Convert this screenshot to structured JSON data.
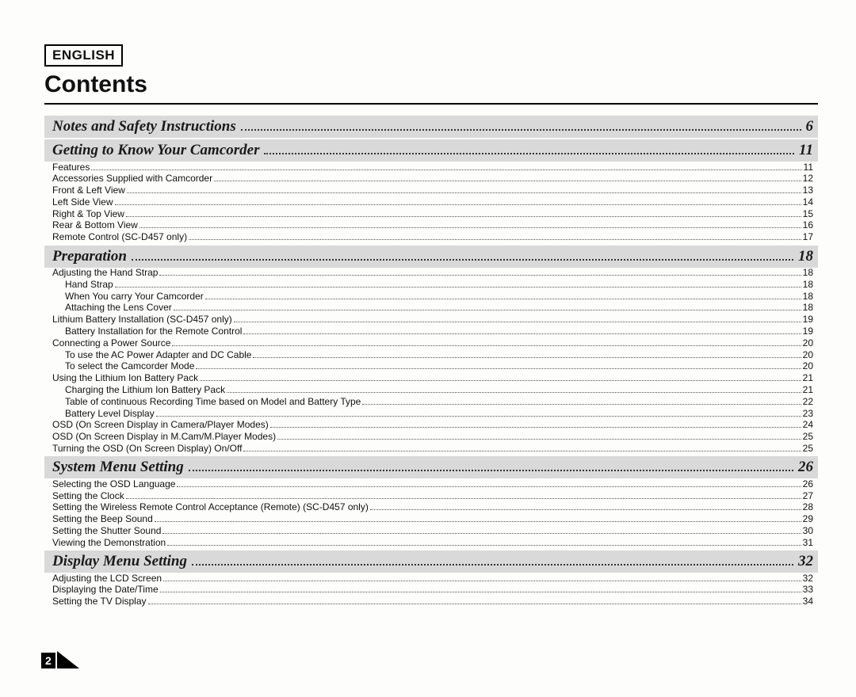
{
  "language_label": "ENGLISH",
  "page_title": "Contents",
  "page_number": "2",
  "fonts": {
    "body": "Arial, Helvetica, sans-serif",
    "section": "Georgia, 'Times New Roman', serif"
  },
  "colors": {
    "background": "#fdfdfc",
    "text": "#111111",
    "section_bg": "#d9d9d9",
    "dots": "#555555",
    "black": "#000000",
    "white": "#ffffff"
  },
  "sections": [
    {
      "title": "Notes and Safety Instructions",
      "page": "6",
      "items": []
    },
    {
      "title": "Getting to Know Your Camcorder",
      "page": "11",
      "items": [
        {
          "label": "Features",
          "page": "11",
          "indent": 0
        },
        {
          "label": "Accessories Supplied with Camcorder",
          "page": "12",
          "indent": 0
        },
        {
          "label": "Front & Left View",
          "page": "13",
          "indent": 0
        },
        {
          "label": "Left Side View",
          "page": "14",
          "indent": 0
        },
        {
          "label": "Right & Top View",
          "page": "15",
          "indent": 0
        },
        {
          "label": "Rear & Bottom View",
          "page": "16",
          "indent": 0
        },
        {
          "label": "Remote Control (SC-D457 only)",
          "page": "17",
          "indent": 0
        }
      ]
    },
    {
      "title": "Preparation",
      "page": "18",
      "items": [
        {
          "label": "Adjusting the Hand Strap",
          "page": "18",
          "indent": 0
        },
        {
          "label": "Hand Strap",
          "page": "18",
          "indent": 1
        },
        {
          "label": "When You carry Your Camcorder",
          "page": "18",
          "indent": 1
        },
        {
          "label": "Attaching the Lens Cover",
          "page": "18",
          "indent": 1
        },
        {
          "label": "Lithium Battery Installation (SC-D457 only)",
          "page": "19",
          "indent": 0
        },
        {
          "label": "Battery Installation for the Remote Control",
          "page": "19",
          "indent": 1
        },
        {
          "label": "Connecting a Power Source",
          "page": "20",
          "indent": 0
        },
        {
          "label": "To use the AC Power Adapter and DC Cable",
          "page": "20",
          "indent": 1
        },
        {
          "label": "To select the Camcorder Mode",
          "page": "20",
          "indent": 1
        },
        {
          "label": "Using the Lithium Ion Battery Pack",
          "page": "21",
          "indent": 0
        },
        {
          "label": "Charging the Lithium Ion Battery Pack",
          "page": "21",
          "indent": 1
        },
        {
          "label": "Table of continuous Recording Time based on Model and Battery Type",
          "page": "22",
          "indent": 1
        },
        {
          "label": "Battery Level Display",
          "page": "23",
          "indent": 1
        },
        {
          "label": "OSD (On Screen Display in Camera/Player Modes)",
          "page": "24",
          "indent": 0
        },
        {
          "label": "OSD (On Screen Display in M.Cam/M.Player Modes)",
          "page": "25",
          "indent": 0
        },
        {
          "label": "Turning the OSD (On Screen Display) On/Off",
          "page": "25",
          "indent": 0
        }
      ]
    },
    {
      "title": "System Menu Setting",
      "page": "26",
      "items": [
        {
          "label": "Selecting  the OSD Language",
          "page": "26",
          "indent": 0
        },
        {
          "label": "Setting the Clock",
          "page": "27",
          "indent": 0
        },
        {
          "label": "Setting the Wireless Remote Control Acceptance (Remote) (SC-D457 only)",
          "page": "28",
          "indent": 0
        },
        {
          "label": "Setting the Beep Sound",
          "page": "29",
          "indent": 0
        },
        {
          "label": "Setting the Shutter Sound",
          "page": "30",
          "indent": 0
        },
        {
          "label": "Viewing the Demonstration",
          "page": "31",
          "indent": 0
        }
      ]
    },
    {
      "title": "Display Menu Setting",
      "page": "32",
      "items": [
        {
          "label": "Adjusting the LCD Screen",
          "page": "32",
          "indent": 0
        },
        {
          "label": "Displaying the Date/Time",
          "page": "33",
          "indent": 0
        },
        {
          "label": "Setting the TV Display",
          "page": "34",
          "indent": 0
        }
      ]
    }
  ]
}
